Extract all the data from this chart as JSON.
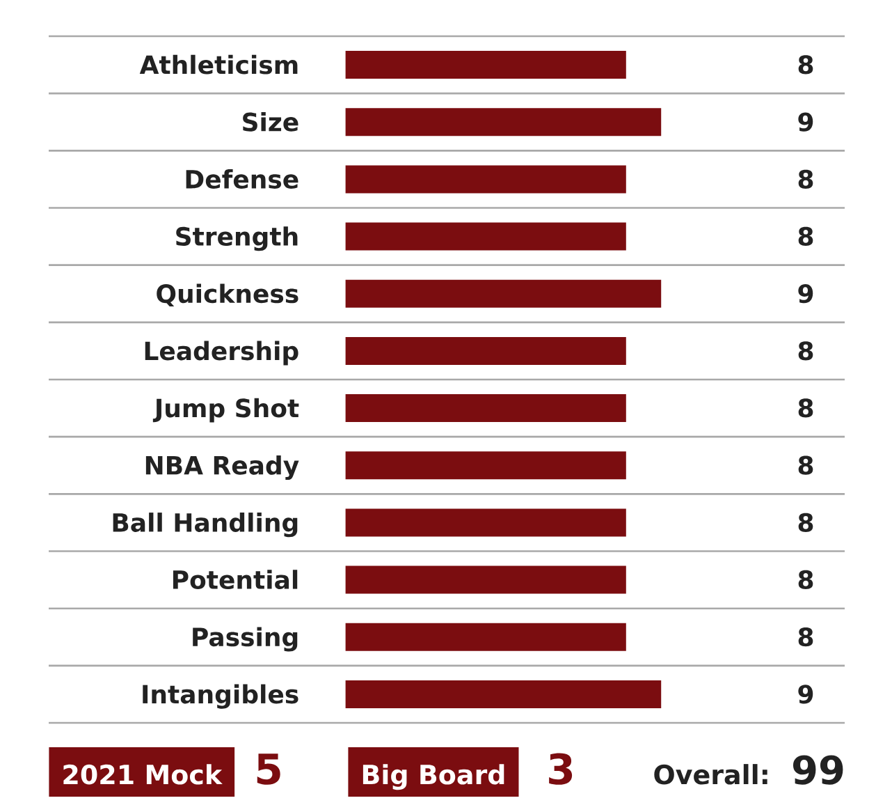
{
  "chart_data": {
    "type": "bar",
    "orientation": "horizontal",
    "categories": [
      "Athleticism",
      "Size",
      "Defense",
      "Strength",
      "Quickness",
      "Leadership",
      "Jump Shot",
      "NBA Ready",
      "Ball Handling",
      "Potential",
      "Passing",
      "Intangibles"
    ],
    "values": [
      8,
      9,
      8,
      8,
      9,
      8,
      8,
      8,
      8,
      8,
      8,
      9
    ],
    "color": "#7b0d10",
    "data_labels": true,
    "grid": "y",
    "tick_labels": "y",
    "annotations": [
      "2021 Mock",
      "5",
      "Big Board",
      "3",
      "Overall:",
      "99"
    ]
  }
}
